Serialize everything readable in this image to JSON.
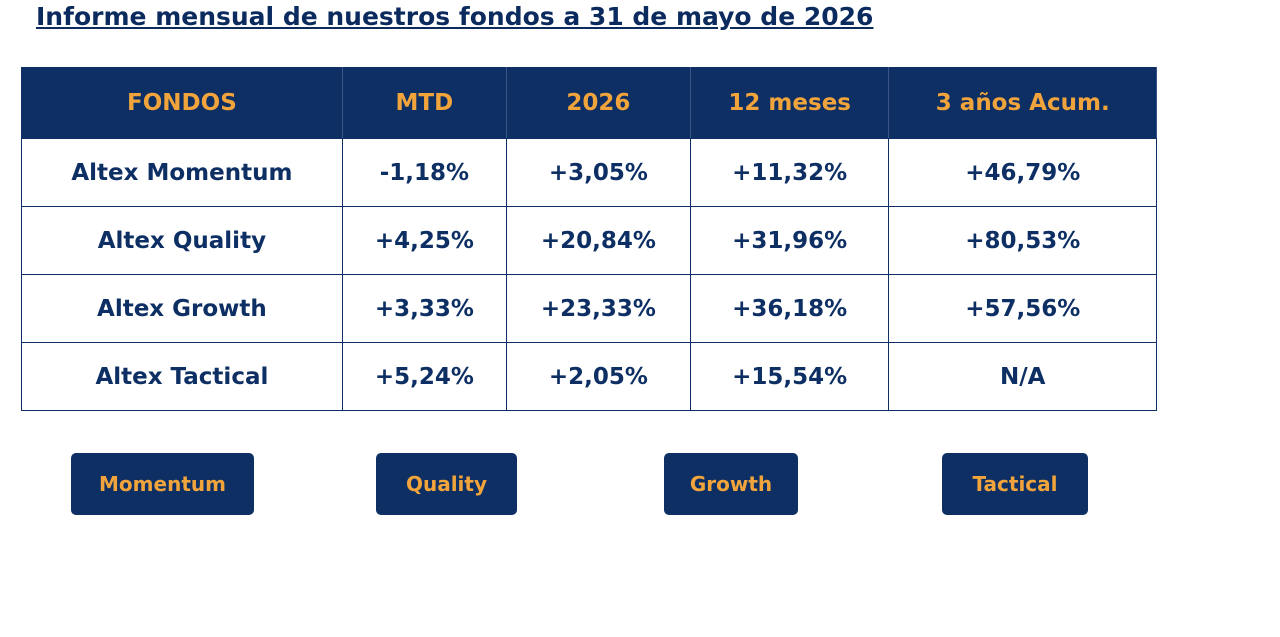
{
  "header": {
    "title": "Informe mensual de nuestros fondos a 31 de mayo de 2026"
  },
  "table": {
    "columns": [
      "FONDOS",
      "MTD",
      "2026",
      "12 meses",
      "3 años Acum."
    ],
    "rows": [
      [
        "Altex Momentum",
        "-1,18%",
        "+3,05%",
        "+11,32%",
        "+46,79%"
      ],
      [
        "Altex Quality",
        "+4,25%",
        "+20,84%",
        "+31,96%",
        "+80,53%"
      ],
      [
        "Altex Growth",
        "+3,33%",
        "+23,33%",
        "+36,18%",
        "+57,56%"
      ],
      [
        "Altex Tactical",
        "+5,24%",
        "+2,05%",
        "+15,54%",
        "N/A"
      ]
    ]
  },
  "buttons": [
    "Momentum",
    "Quality",
    "Growth",
    "Tactical"
  ]
}
